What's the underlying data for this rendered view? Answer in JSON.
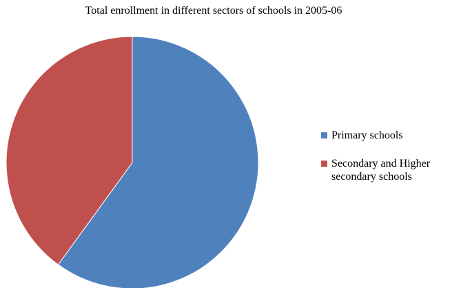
{
  "chart_data": {
    "type": "pie",
    "title": "Total enrollment in different sectors of schools in 2005-06",
    "legend_position": "right",
    "slices": [
      {
        "label": "Primary schools",
        "value": 60,
        "color": "#4F81BD"
      },
      {
        "label": "Secondary and Higher secondary schools",
        "value": 40,
        "color": "#C0504D"
      }
    ]
  }
}
